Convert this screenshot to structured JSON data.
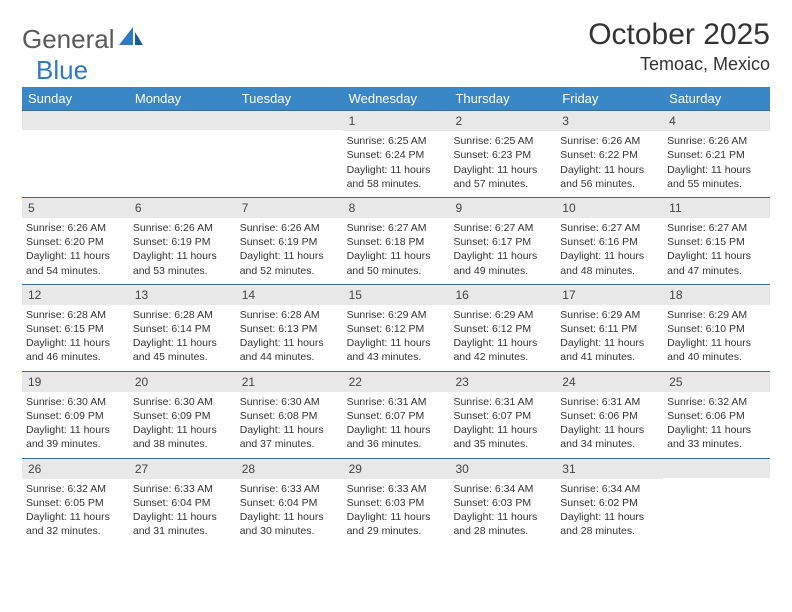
{
  "logo": {
    "part1": "General",
    "part2": "Blue"
  },
  "title": "October 2025",
  "location": "Temoac, Mexico",
  "colors": {
    "header_bg": "#3a87c7",
    "header_text": "#ffffff",
    "week_border": "#3a6a95",
    "daynum_bg": "#e8e8e8",
    "logo_gray": "#5a5a5a",
    "logo_blue": "#2f7ac0"
  },
  "day_headers": [
    "Sunday",
    "Monday",
    "Tuesday",
    "Wednesday",
    "Thursday",
    "Friday",
    "Saturday"
  ],
  "weeks": [
    [
      null,
      null,
      null,
      {
        "n": "1",
        "sunrise": "6:25 AM",
        "sunset": "6:24 PM",
        "dl1": "Daylight: 11 hours",
        "dl2": "and 58 minutes."
      },
      {
        "n": "2",
        "sunrise": "6:25 AM",
        "sunset": "6:23 PM",
        "dl1": "Daylight: 11 hours",
        "dl2": "and 57 minutes."
      },
      {
        "n": "3",
        "sunrise": "6:26 AM",
        "sunset": "6:22 PM",
        "dl1": "Daylight: 11 hours",
        "dl2": "and 56 minutes."
      },
      {
        "n": "4",
        "sunrise": "6:26 AM",
        "sunset": "6:21 PM",
        "dl1": "Daylight: 11 hours",
        "dl2": "and 55 minutes."
      }
    ],
    [
      {
        "n": "5",
        "sunrise": "6:26 AM",
        "sunset": "6:20 PM",
        "dl1": "Daylight: 11 hours",
        "dl2": "and 54 minutes."
      },
      {
        "n": "6",
        "sunrise": "6:26 AM",
        "sunset": "6:19 PM",
        "dl1": "Daylight: 11 hours",
        "dl2": "and 53 minutes."
      },
      {
        "n": "7",
        "sunrise": "6:26 AM",
        "sunset": "6:19 PM",
        "dl1": "Daylight: 11 hours",
        "dl2": "and 52 minutes."
      },
      {
        "n": "8",
        "sunrise": "6:27 AM",
        "sunset": "6:18 PM",
        "dl1": "Daylight: 11 hours",
        "dl2": "and 50 minutes."
      },
      {
        "n": "9",
        "sunrise": "6:27 AM",
        "sunset": "6:17 PM",
        "dl1": "Daylight: 11 hours",
        "dl2": "and 49 minutes."
      },
      {
        "n": "10",
        "sunrise": "6:27 AM",
        "sunset": "6:16 PM",
        "dl1": "Daylight: 11 hours",
        "dl2": "and 48 minutes."
      },
      {
        "n": "11",
        "sunrise": "6:27 AM",
        "sunset": "6:15 PM",
        "dl1": "Daylight: 11 hours",
        "dl2": "and 47 minutes."
      }
    ],
    [
      {
        "n": "12",
        "sunrise": "6:28 AM",
        "sunset": "6:15 PM",
        "dl1": "Daylight: 11 hours",
        "dl2": "and 46 minutes."
      },
      {
        "n": "13",
        "sunrise": "6:28 AM",
        "sunset": "6:14 PM",
        "dl1": "Daylight: 11 hours",
        "dl2": "and 45 minutes."
      },
      {
        "n": "14",
        "sunrise": "6:28 AM",
        "sunset": "6:13 PM",
        "dl1": "Daylight: 11 hours",
        "dl2": "and 44 minutes."
      },
      {
        "n": "15",
        "sunrise": "6:29 AM",
        "sunset": "6:12 PM",
        "dl1": "Daylight: 11 hours",
        "dl2": "and 43 minutes."
      },
      {
        "n": "16",
        "sunrise": "6:29 AM",
        "sunset": "6:12 PM",
        "dl1": "Daylight: 11 hours",
        "dl2": "and 42 minutes."
      },
      {
        "n": "17",
        "sunrise": "6:29 AM",
        "sunset": "6:11 PM",
        "dl1": "Daylight: 11 hours",
        "dl2": "and 41 minutes."
      },
      {
        "n": "18",
        "sunrise": "6:29 AM",
        "sunset": "6:10 PM",
        "dl1": "Daylight: 11 hours",
        "dl2": "and 40 minutes."
      }
    ],
    [
      {
        "n": "19",
        "sunrise": "6:30 AM",
        "sunset": "6:09 PM",
        "dl1": "Daylight: 11 hours",
        "dl2": "and 39 minutes."
      },
      {
        "n": "20",
        "sunrise": "6:30 AM",
        "sunset": "6:09 PM",
        "dl1": "Daylight: 11 hours",
        "dl2": "and 38 minutes."
      },
      {
        "n": "21",
        "sunrise": "6:30 AM",
        "sunset": "6:08 PM",
        "dl1": "Daylight: 11 hours",
        "dl2": "and 37 minutes."
      },
      {
        "n": "22",
        "sunrise": "6:31 AM",
        "sunset": "6:07 PM",
        "dl1": "Daylight: 11 hours",
        "dl2": "and 36 minutes."
      },
      {
        "n": "23",
        "sunrise": "6:31 AM",
        "sunset": "6:07 PM",
        "dl1": "Daylight: 11 hours",
        "dl2": "and 35 minutes."
      },
      {
        "n": "24",
        "sunrise": "6:31 AM",
        "sunset": "6:06 PM",
        "dl1": "Daylight: 11 hours",
        "dl2": "and 34 minutes."
      },
      {
        "n": "25",
        "sunrise": "6:32 AM",
        "sunset": "6:06 PM",
        "dl1": "Daylight: 11 hours",
        "dl2": "and 33 minutes."
      }
    ],
    [
      {
        "n": "26",
        "sunrise": "6:32 AM",
        "sunset": "6:05 PM",
        "dl1": "Daylight: 11 hours",
        "dl2": "and 32 minutes."
      },
      {
        "n": "27",
        "sunrise": "6:33 AM",
        "sunset": "6:04 PM",
        "dl1": "Daylight: 11 hours",
        "dl2": "and 31 minutes."
      },
      {
        "n": "28",
        "sunrise": "6:33 AM",
        "sunset": "6:04 PM",
        "dl1": "Daylight: 11 hours",
        "dl2": "and 30 minutes."
      },
      {
        "n": "29",
        "sunrise": "6:33 AM",
        "sunset": "6:03 PM",
        "dl1": "Daylight: 11 hours",
        "dl2": "and 29 minutes."
      },
      {
        "n": "30",
        "sunrise": "6:34 AM",
        "sunset": "6:03 PM",
        "dl1": "Daylight: 11 hours",
        "dl2": "and 28 minutes."
      },
      {
        "n": "31",
        "sunrise": "6:34 AM",
        "sunset": "6:02 PM",
        "dl1": "Daylight: 11 hours",
        "dl2": "and 28 minutes."
      },
      null
    ]
  ],
  "labels": {
    "sunrise": "Sunrise: ",
    "sunset": "Sunset: "
  }
}
